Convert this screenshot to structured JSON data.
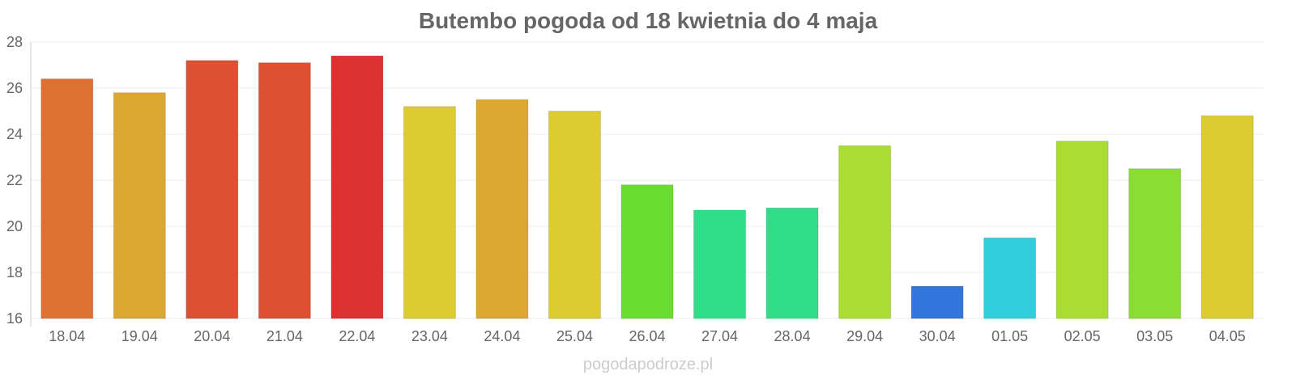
{
  "chart_data": {
    "type": "bar",
    "title": "Butembo pogoda od 18 kwietnia do 4 maja",
    "xlabel": "",
    "ylabel": "",
    "ylim": [
      16,
      28
    ],
    "yticks": [
      16,
      18,
      20,
      22,
      24,
      26,
      28
    ],
    "grid": true,
    "categories": [
      "18.04",
      "19.04",
      "20.04",
      "21.04",
      "22.04",
      "23.04",
      "24.04",
      "25.04",
      "26.04",
      "27.04",
      "28.04",
      "29.04",
      "30.04",
      "01.05",
      "02.05",
      "03.05",
      "04.05"
    ],
    "values": [
      26.4,
      25.8,
      27.2,
      27.1,
      27.4,
      25.2,
      25.5,
      25.0,
      21.8,
      20.7,
      20.8,
      23.5,
      17.4,
      19.5,
      23.7,
      22.5,
      24.8
    ],
    "colors": [
      "#dd7132",
      "#dda832",
      "#dd5032",
      "#dd5032",
      "#dd3232",
      "#dccb32",
      "#dda832",
      "#dccb32",
      "#6add32",
      "#32dd8a",
      "#32dd8a",
      "#aadd32",
      "#3276dd",
      "#32cedd",
      "#aadd32",
      "#8add32",
      "#dccb32"
    ]
  },
  "footer": "pogodapodroze.pl"
}
